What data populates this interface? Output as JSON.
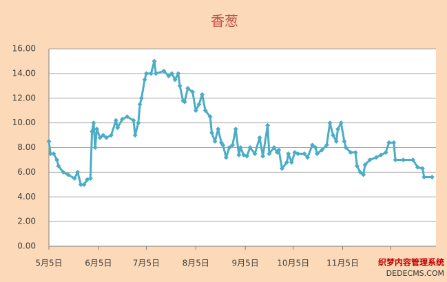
{
  "chart_data": {
    "type": "line",
    "title": "香葱",
    "xlim": [
      0,
      242
    ],
    "xticks": [
      {
        "value": 0,
        "label": "5月5日"
      },
      {
        "value": 31,
        "label": "6月5日"
      },
      {
        "value": 61,
        "label": "7月5日"
      },
      {
        "value": 92,
        "label": "8月5日"
      },
      {
        "value": 123,
        "label": "9月5日"
      },
      {
        "value": 153,
        "label": "10月5日"
      },
      {
        "value": 184,
        "label": "11月5日"
      },
      {
        "value": 214,
        "label": null
      }
    ],
    "ylim": [
      0,
      16
    ],
    "yticks": [
      {
        "value": 0,
        "label": "0.00"
      },
      {
        "value": 2,
        "label": "2.00"
      },
      {
        "value": 4,
        "label": "4.00"
      },
      {
        "value": 6,
        "label": "6.00"
      },
      {
        "value": 8,
        "label": "8.00"
      },
      {
        "value": 10,
        "label": "10.00"
      },
      {
        "value": 12,
        "label": "12.00"
      },
      {
        "value": 14,
        "label": "14.00"
      },
      {
        "value": 16,
        "label": "16.00"
      }
    ],
    "grid": true,
    "series": [
      {
        "color": "#4bacc6",
        "x": [
          0,
          1,
          3,
          5,
          6,
          9,
          12,
          16,
          18,
          20,
          22,
          24,
          26,
          27,
          28,
          29,
          30,
          32,
          34,
          36,
          39,
          42,
          43,
          46,
          49,
          53,
          54,
          56,
          57,
          58,
          60,
          61,
          64,
          66,
          67,
          72,
          75,
          77,
          79,
          81,
          82,
          84,
          85,
          87,
          90,
          92,
          94,
          96,
          98,
          101,
          102,
          104,
          106,
          108,
          109,
          111,
          113,
          115,
          117,
          119,
          120,
          122,
          124,
          126,
          129,
          132,
          134,
          137,
          138,
          141,
          143,
          144,
          146,
          149,
          150,
          152,
          154,
          156,
          160,
          162,
          165,
          167,
          168,
          171,
          174,
          176,
          178,
          180,
          181,
          183,
          185,
          186,
          189,
          192,
          193,
          195,
          197,
          198,
          201,
          205,
          208,
          211,
          213,
          216,
          217,
          222,
          228,
          231,
          234,
          235,
          240
        ],
        "values": [
          8.5,
          7.5,
          7.5,
          7.0,
          6.5,
          6.0,
          5.8,
          5.5,
          6.0,
          5.0,
          5.0,
          5.4,
          5.5,
          9.3,
          10.0,
          8.0,
          9.5,
          8.8,
          9.0,
          8.8,
          9.0,
          10.2,
          9.6,
          10.3,
          10.5,
          10.2,
          9.0,
          10.0,
          11.5,
          12.0,
          13.5,
          14.0,
          14.0,
          15.0,
          14.0,
          14.2,
          13.8,
          14.0,
          13.5,
          14.0,
          13.0,
          11.8,
          11.7,
          12.8,
          12.5,
          11.0,
          11.5,
          12.3,
          11.0,
          10.5,
          9.2,
          8.5,
          9.5,
          8.4,
          8.2,
          7.2,
          8.0,
          8.2,
          9.5,
          7.4,
          8.0,
          7.4,
          7.3,
          8.0,
          7.5,
          8.8,
          7.3,
          9.8,
          7.5,
          8.0,
          7.6,
          7.8,
          6.3,
          6.8,
          7.5,
          6.8,
          7.6,
          7.5,
          7.5,
          7.2,
          8.2,
          8.0,
          7.5,
          7.8,
          8.2,
          10.0,
          9.0,
          8.5,
          9.5,
          10.0,
          8.5,
          8.0,
          7.6,
          7.6,
          6.5,
          6.0,
          5.8,
          6.6,
          7.0,
          7.2,
          7.4,
          7.6,
          8.4,
          8.4,
          7.0,
          7.0,
          7.0,
          6.4,
          6.3,
          5.6,
          5.6
        ]
      }
    ]
  },
  "watermark": [
    "织梦内容管理系统",
    "DEDECMS.COM"
  ]
}
